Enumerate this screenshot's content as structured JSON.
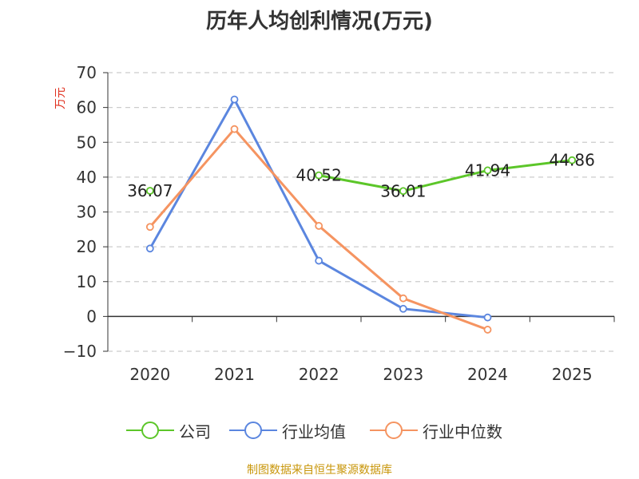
{
  "chart_data": {
    "type": "line",
    "title": "历年人均创利情况(万元)",
    "ylabel": "万元",
    "xlabel": "",
    "categories": [
      "2020",
      "2021",
      "2022",
      "2023",
      "2024",
      "2025"
    ],
    "ylim": [
      -10,
      70
    ],
    "yticks": [
      -10,
      0,
      10,
      20,
      30,
      40,
      50,
      60,
      70
    ],
    "grid": true,
    "legend_position": "bottom",
    "series": [
      {
        "name": "公司",
        "color": "#5cc629",
        "values": [
          36.07,
          null,
          40.52,
          36.01,
          41.94,
          44.86
        ],
        "labels": [
          "36.07",
          null,
          "40.52",
          "36.01",
          "41.94",
          "44.86"
        ]
      },
      {
        "name": "行业均值",
        "color": "#5b86df",
        "values": [
          19.5,
          62.3,
          16.0,
          2.2,
          -0.3,
          null
        ]
      },
      {
        "name": "行业中位数",
        "color": "#f59461",
        "values": [
          25.7,
          53.8,
          26.0,
          5.2,
          -3.8,
          null
        ]
      }
    ]
  },
  "source": "制图数据来自恒生聚源数据库"
}
